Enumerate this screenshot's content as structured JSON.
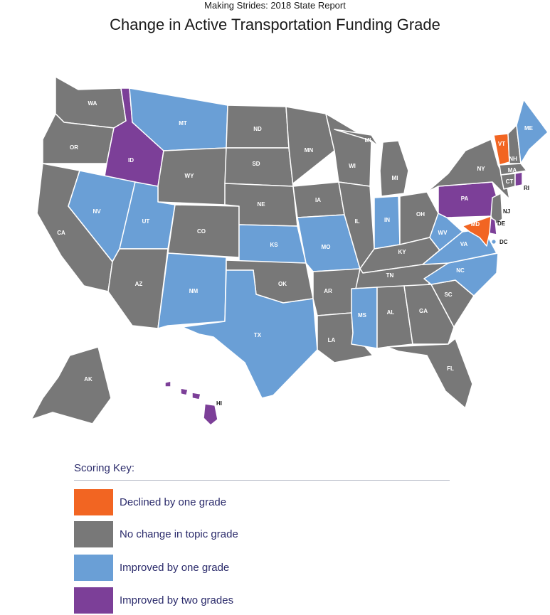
{
  "header": {
    "supertitle": "Making Strides:  2018 State Report",
    "title": "Change in Active Transportation Funding Grade"
  },
  "colors": {
    "declined": "#f26522",
    "no_change": "#787878",
    "improved_one": "#6a9fd6",
    "improved_two": "#7c3f98"
  },
  "map": {
    "states": [
      {
        "id": "WA",
        "label": "WA",
        "category": "no_change"
      },
      {
        "id": "OR",
        "label": "OR",
        "category": "no_change"
      },
      {
        "id": "CA",
        "label": "CA",
        "category": "no_change"
      },
      {
        "id": "ID",
        "label": "ID",
        "category": "improved_two"
      },
      {
        "id": "NV",
        "label": "NV",
        "category": "improved_one"
      },
      {
        "id": "MT",
        "label": "MT",
        "category": "improved_one"
      },
      {
        "id": "WY",
        "label": "WY",
        "category": "no_change"
      },
      {
        "id": "UT",
        "label": "UT",
        "category": "improved_one"
      },
      {
        "id": "AZ",
        "label": "AZ",
        "category": "no_change"
      },
      {
        "id": "CO",
        "label": "CO",
        "category": "no_change"
      },
      {
        "id": "NM",
        "label": "NM",
        "category": "improved_one"
      },
      {
        "id": "ND",
        "label": "ND",
        "category": "no_change"
      },
      {
        "id": "SD",
        "label": "SD",
        "category": "no_change"
      },
      {
        "id": "NE",
        "label": "NE",
        "category": "no_change"
      },
      {
        "id": "KS",
        "label": "KS",
        "category": "improved_one"
      },
      {
        "id": "OK",
        "label": "OK",
        "category": "no_change"
      },
      {
        "id": "TX",
        "label": "TX",
        "category": "improved_one"
      },
      {
        "id": "MN",
        "label": "MN",
        "category": "no_change"
      },
      {
        "id": "IA",
        "label": "IA",
        "category": "no_change"
      },
      {
        "id": "MO",
        "label": "MO",
        "category": "improved_one"
      },
      {
        "id": "AR",
        "label": "AR",
        "category": "no_change"
      },
      {
        "id": "LA",
        "label": "LA",
        "category": "no_change"
      },
      {
        "id": "WI",
        "label": "WI",
        "category": "no_change"
      },
      {
        "id": "IL",
        "label": "IL",
        "category": "no_change"
      },
      {
        "id": "MI",
        "label": "MI",
        "category": "no_change"
      },
      {
        "id": "IN",
        "label": "IN",
        "category": "improved_one"
      },
      {
        "id": "OH",
        "label": "OH",
        "category": "no_change"
      },
      {
        "id": "KY",
        "label": "KY",
        "category": "no_change"
      },
      {
        "id": "TN",
        "label": "TN",
        "category": "no_change"
      },
      {
        "id": "MS",
        "label": "MS",
        "category": "improved_one"
      },
      {
        "id": "AL",
        "label": "AL",
        "category": "no_change"
      },
      {
        "id": "GA",
        "label": "GA",
        "category": "no_change"
      },
      {
        "id": "FL",
        "label": "FL",
        "category": "no_change"
      },
      {
        "id": "SC",
        "label": "SC",
        "category": "no_change"
      },
      {
        "id": "NC",
        "label": "NC",
        "category": "improved_one"
      },
      {
        "id": "VA",
        "label": "VA",
        "category": "improved_one"
      },
      {
        "id": "WV",
        "label": "WV",
        "category": "improved_one"
      },
      {
        "id": "PA",
        "label": "PA",
        "category": "improved_two"
      },
      {
        "id": "NY",
        "label": "NY",
        "category": "no_change"
      },
      {
        "id": "VT",
        "label": "VT",
        "category": "declined"
      },
      {
        "id": "NH",
        "label": "NH",
        "category": "no_change"
      },
      {
        "id": "ME",
        "label": "ME",
        "category": "improved_one"
      },
      {
        "id": "MA",
        "label": "MA",
        "category": "no_change"
      },
      {
        "id": "CT",
        "label": "CT",
        "category": "no_change"
      },
      {
        "id": "RI",
        "label": "RI",
        "category": "improved_two"
      },
      {
        "id": "NJ",
        "label": "NJ",
        "category": "no_change"
      },
      {
        "id": "DE",
        "label": "DE",
        "category": "improved_two"
      },
      {
        "id": "MD",
        "label": "MD",
        "category": "declined"
      },
      {
        "id": "DC",
        "label": "DC",
        "category": "improved_one"
      },
      {
        "id": "AK",
        "label": "AK",
        "category": "no_change"
      },
      {
        "id": "HI",
        "label": "HI",
        "category": "improved_two"
      }
    ]
  },
  "legend": {
    "title": "Scoring Key:",
    "items": [
      {
        "category": "declined",
        "label": "Declined by one grade"
      },
      {
        "category": "no_change",
        "label": "No change in topic grade"
      },
      {
        "category": "improved_one",
        "label": "Improved by one grade"
      },
      {
        "category": "improved_two",
        "label": "Improved by two grades"
      }
    ]
  }
}
